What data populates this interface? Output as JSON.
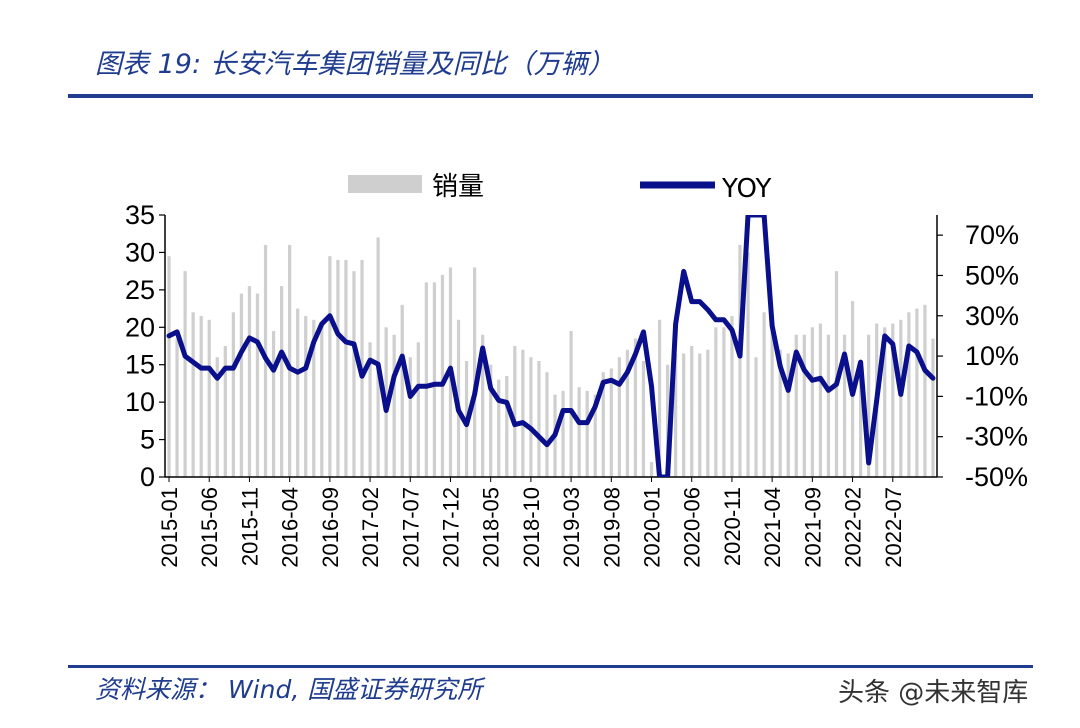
{
  "header": {
    "title": "图表 19:  长安汽车集团销量及同比（万辆）"
  },
  "footer": {
    "source": "资料来源： Wind,  国盛证券研究所",
    "watermark": "头条 @未来智库"
  },
  "colors": {
    "bar": "#cfcfcf",
    "line": "#0a0f8c",
    "accent": "#1f3c8f"
  },
  "chart_data": {
    "type": "bar+line",
    "legend": [
      "销量",
      "YOY"
    ],
    "legend_position": "top",
    "x": [
      "2015-01",
      "2015-02",
      "2015-03",
      "2015-04",
      "2015-05",
      "2015-06",
      "2015-07",
      "2015-08",
      "2015-09",
      "2015-10",
      "2015-11",
      "2015-12",
      "2016-01",
      "2016-02",
      "2016-03",
      "2016-04",
      "2016-05",
      "2016-06",
      "2016-07",
      "2016-08",
      "2016-09",
      "2016-10",
      "2016-11",
      "2016-12",
      "2017-01",
      "2017-02",
      "2017-03",
      "2017-04",
      "2017-05",
      "2017-06",
      "2017-07",
      "2017-08",
      "2017-09",
      "2017-10",
      "2017-11",
      "2017-12",
      "2018-01",
      "2018-02",
      "2018-03",
      "2018-04",
      "2018-05",
      "2018-06",
      "2018-07",
      "2018-08",
      "2018-09",
      "2018-10",
      "2018-11",
      "2018-12",
      "2019-01",
      "2019-02",
      "2019-03",
      "2019-04",
      "2019-05",
      "2019-06",
      "2019-07",
      "2019-08",
      "2019-09",
      "2019-10",
      "2019-11",
      "2019-12",
      "2020-01",
      "2020-02",
      "2020-03",
      "2020-04",
      "2020-05",
      "2020-06",
      "2020-07",
      "2020-08",
      "2020-09",
      "2020-10",
      "2020-11",
      "2020-12",
      "2021-01",
      "2021-02",
      "2021-03",
      "2021-04",
      "2021-05",
      "2021-06",
      "2021-07",
      "2021-08",
      "2021-09",
      "2021-10",
      "2021-11",
      "2021-12",
      "2022-01",
      "2022-02",
      "2022-03",
      "2022-04",
      "2022-05",
      "2022-06",
      "2022-07",
      "2022-08",
      "2022-09",
      "2022-10",
      "2022-11",
      "2022-12"
    ],
    "x_tick_labels": [
      "2015-01",
      "2015-06",
      "2015-11",
      "2016-04",
      "2016-09",
      "2017-02",
      "2017-07",
      "2017-12",
      "2018-05",
      "2018-10",
      "2019-03",
      "2019-08",
      "2020-01",
      "2020-06",
      "2020-11",
      "2021-04",
      "2021-09",
      "2022-02",
      "2022-07"
    ],
    "series": [
      {
        "name": "销量",
        "type": "bar",
        "axis": "left",
        "values": [
          29.5,
          18.5,
          27.5,
          22.0,
          21.5,
          21.0,
          16.0,
          17.5,
          22.0,
          24.5,
          25.5,
          24.5,
          31.0,
          19.5,
          25.5,
          31.0,
          22.5,
          21.5,
          21.0,
          20.5,
          29.5,
          29.0,
          29.0,
          27.5,
          29.0,
          18.0,
          32.0,
          20.0,
          19.0,
          23.0,
          16.0,
          18.0,
          26.0,
          26.0,
          27.0,
          28.0,
          21.0,
          15.5,
          28.0,
          19.0,
          15.0,
          13.0,
          13.5,
          17.5,
          17.0,
          16.0,
          15.5,
          14.0,
          11.0,
          11.5,
          19.5,
          12.0,
          11.5,
          11.0,
          14.0,
          14.5,
          16.0,
          17.0,
          18.5,
          15.5,
          2.0,
          21.0,
          15.0,
          16.5,
          16.5,
          17.5,
          16.5,
          17.0,
          20.0,
          20.0,
          21.5,
          31.0,
          30.0,
          16.0,
          22.0,
          20.0,
          17.0,
          16.5,
          19.0,
          19.0,
          20.0,
          20.5,
          19.0,
          27.5,
          19.0,
          23.5,
          14.0,
          19.0,
          20.5,
          20.0,
          20.5,
          21.0,
          22.0,
          22.5,
          23.0,
          18.5
        ],
        "bar_color": "#cfcfcf"
      },
      {
        "name": "YOY",
        "type": "line",
        "axis": "right",
        "values": [
          0.2,
          0.22,
          0.1,
          0.07,
          0.04,
          0.04,
          -0.01,
          0.04,
          0.04,
          0.12,
          0.19,
          0.17,
          0.09,
          0.03,
          0.12,
          0.04,
          0.02,
          0.04,
          0.17,
          0.26,
          0.3,
          0.21,
          0.17,
          0.16,
          0.0,
          0.08,
          0.06,
          -0.17,
          0.0,
          0.1,
          -0.1,
          -0.05,
          -0.05,
          -0.04,
          -0.04,
          0.04,
          -0.17,
          -0.24,
          -0.09,
          0.14,
          -0.06,
          -0.12,
          -0.13,
          -0.24,
          -0.23,
          -0.26,
          -0.3,
          -0.34,
          -0.29,
          -0.17,
          -0.17,
          -0.23,
          -0.23,
          -0.15,
          -0.03,
          -0.02,
          -0.04,
          0.02,
          0.11,
          0.22,
          -0.05,
          -0.5,
          -0.5,
          0.26,
          0.52,
          0.37,
          0.37,
          0.33,
          0.28,
          0.28,
          0.23,
          0.1,
          0.8,
          0.8,
          0.8,
          0.25,
          0.05,
          -0.07,
          0.12,
          0.03,
          -0.02,
          -0.01,
          -0.07,
          -0.04,
          0.11,
          -0.09,
          0.07,
          -0.43,
          -0.12,
          0.2,
          0.16,
          -0.09,
          0.15,
          0.12,
          0.03,
          -0.01
        ],
        "line_color": "#0a0f8c"
      }
    ],
    "y_left": {
      "min": 0,
      "max": 35,
      "ticks": [
        0,
        5,
        10,
        15,
        20,
        25,
        30,
        35
      ],
      "tick_labels": [
        "0",
        "5",
        "10",
        "15",
        "20",
        "25",
        "30",
        "35"
      ]
    },
    "y_right": {
      "min": -0.5,
      "max": 0.8,
      "ticks": [
        -0.5,
        -0.3,
        -0.1,
        0.1,
        0.3,
        0.5,
        0.7
      ],
      "tick_labels": [
        "-50%",
        "-30%",
        "-10%",
        "10%",
        "30%",
        "50%",
        "70%"
      ]
    }
  }
}
